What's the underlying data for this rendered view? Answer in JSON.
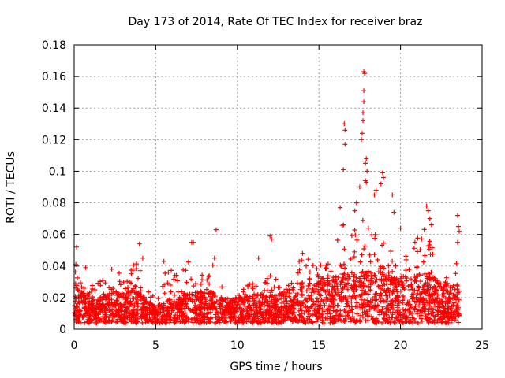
{
  "chart_data": {
    "type": "scatter",
    "title": "Day 173 of 2014, Rate Of TEC Index for receiver braz",
    "xlabel": "GPS time / hours",
    "ylabel": "ROTI / TECUs",
    "xlim": [
      0,
      25
    ],
    "ylim": [
      0,
      0.18
    ],
    "grid": true,
    "marker": "+",
    "color": "#ff0000",
    "x_ticks": [
      "0",
      "5",
      "10",
      "15",
      "20",
      "25"
    ],
    "y_ticks": [
      "0",
      "0.02",
      "0.04",
      "0.06",
      "0.08",
      "0.1",
      "0.12",
      "0.14",
      "0.16",
      "0.18"
    ],
    "envelope": [
      [
        0,
        0.018,
        0.04
      ],
      [
        0.5,
        0.014,
        0.032
      ],
      [
        1,
        0.012,
        0.028
      ],
      [
        1.5,
        0.012,
        0.03
      ],
      [
        2,
        0.013,
        0.032
      ],
      [
        2.5,
        0.014,
        0.036
      ],
      [
        3,
        0.014,
        0.038
      ],
      [
        3.5,
        0.015,
        0.04
      ],
      [
        4,
        0.014,
        0.045
      ],
      [
        4.5,
        0.01,
        0.03
      ],
      [
        5,
        0.008,
        0.018
      ],
      [
        5.5,
        0.01,
        0.035
      ],
      [
        6,
        0.012,
        0.038
      ],
      [
        6.5,
        0.011,
        0.033
      ],
      [
        7,
        0.013,
        0.048
      ],
      [
        7.5,
        0.014,
        0.04
      ],
      [
        8,
        0.014,
        0.036
      ],
      [
        8.5,
        0.014,
        0.042
      ],
      [
        9,
        0.012,
        0.03
      ],
      [
        9.5,
        0.011,
        0.022
      ],
      [
        10,
        0.011,
        0.024
      ],
      [
        10.5,
        0.012,
        0.028
      ],
      [
        11,
        0.013,
        0.034
      ],
      [
        11.5,
        0.013,
        0.03
      ],
      [
        12,
        0.014,
        0.04
      ],
      [
        12.5,
        0.013,
        0.03
      ],
      [
        13,
        0.014,
        0.034
      ],
      [
        13.5,
        0.016,
        0.04
      ],
      [
        14,
        0.018,
        0.046
      ],
      [
        14.5,
        0.02,
        0.044
      ],
      [
        15,
        0.02,
        0.046
      ],
      [
        15.5,
        0.019,
        0.042
      ],
      [
        16,
        0.02,
        0.052
      ],
      [
        16.5,
        0.022,
        0.07
      ],
      [
        17,
        0.022,
        0.06
      ],
      [
        17.5,
        0.024,
        0.08
      ],
      [
        18,
        0.022,
        0.07
      ],
      [
        18.5,
        0.022,
        0.06
      ],
      [
        19,
        0.022,
        0.07
      ],
      [
        19.5,
        0.02,
        0.05
      ],
      [
        20,
        0.02,
        0.055
      ],
      [
        20.5,
        0.02,
        0.05
      ],
      [
        21,
        0.021,
        0.06
      ],
      [
        21.5,
        0.022,
        0.065
      ],
      [
        22,
        0.02,
        0.05
      ],
      [
        22.5,
        0.018,
        0.04
      ],
      [
        23,
        0.016,
        0.032
      ],
      [
        23.6,
        0.016,
        0.046
      ]
    ],
    "peaks": [
      [
        0.1,
        0.041
      ],
      [
        0.15,
        0.052
      ],
      [
        0.7,
        0.039
      ],
      [
        2.3,
        0.038
      ],
      [
        4.0,
        0.054
      ],
      [
        4.2,
        0.045
      ],
      [
        5.5,
        0.043
      ],
      [
        7.2,
        0.055
      ],
      [
        7.3,
        0.055
      ],
      [
        8.7,
        0.063
      ],
      [
        8.6,
        0.045
      ],
      [
        11.3,
        0.045
      ],
      [
        12.0,
        0.059
      ],
      [
        12.1,
        0.057
      ],
      [
        14.0,
        0.048
      ],
      [
        16.3,
        0.077
      ],
      [
        16.5,
        0.101
      ],
      [
        16.6,
        0.117
      ],
      [
        16.55,
        0.13
      ],
      [
        16.6,
        0.126
      ],
      [
        16.5,
        0.066
      ],
      [
        17.2,
        0.075
      ],
      [
        17.3,
        0.08
      ],
      [
        17.5,
        0.09
      ],
      [
        17.6,
        0.12
      ],
      [
        17.65,
        0.124
      ],
      [
        17.7,
        0.132
      ],
      [
        17.7,
        0.137
      ],
      [
        17.75,
        0.144
      ],
      [
        17.75,
        0.151
      ],
      [
        17.8,
        0.162
      ],
      [
        17.75,
        0.163
      ],
      [
        17.85,
        0.105
      ],
      [
        17.9,
        0.108
      ],
      [
        17.95,
        0.1
      ],
      [
        17.85,
        0.094
      ],
      [
        17.9,
        0.093
      ],
      [
        18.4,
        0.085
      ],
      [
        18.5,
        0.088
      ],
      [
        18.8,
        0.092
      ],
      [
        18.9,
        0.099
      ],
      [
        18.95,
        0.096
      ],
      [
        19.5,
        0.085
      ],
      [
        19.6,
        0.074
      ],
      [
        20.0,
        0.064
      ],
      [
        21.6,
        0.078
      ],
      [
        21.7,
        0.075
      ],
      [
        21.8,
        0.07
      ],
      [
        21.9,
        0.066
      ],
      [
        23.5,
        0.072
      ],
      [
        23.55,
        0.065
      ],
      [
        23.6,
        0.062
      ],
      [
        23.5,
        0.055
      ]
    ]
  }
}
